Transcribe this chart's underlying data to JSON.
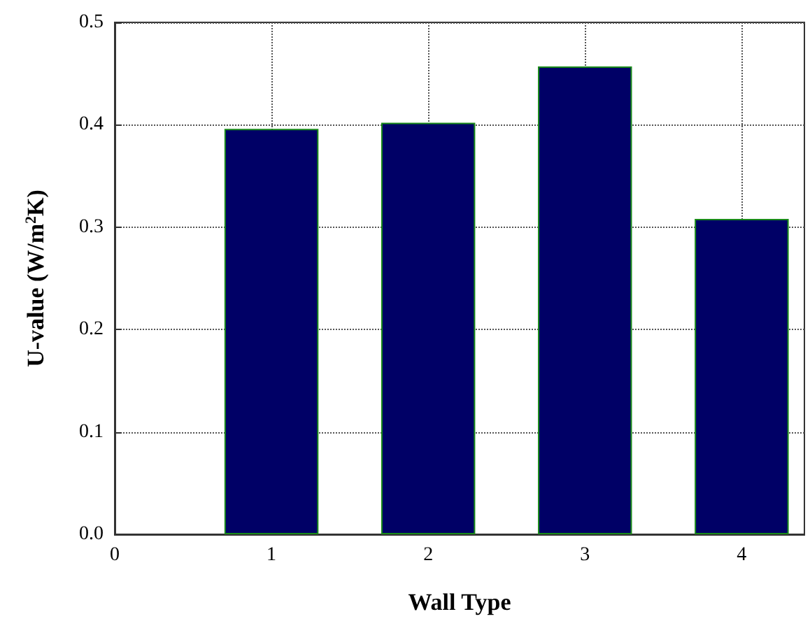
{
  "chart_data": {
    "type": "bar",
    "xlabel": "Wall Type",
    "ylabel": "U-value (W/m$^{2}$K)",
    "x": [
      1,
      2,
      3,
      4
    ],
    "series": [
      {
        "color": "#000066",
        "values": [
          0.396,
          0.402,
          0.457,
          0.308
        ]
      }
    ],
    "xlim": [
      0,
      4.4
    ],
    "xticks": [
      0,
      1,
      2,
      3,
      4
    ],
    "ylim": [
      0,
      0.5
    ],
    "yticks": [
      {
        "value": 0,
        "label": "0.0"
      },
      {
        "value": 0.1,
        "label": "0.1"
      },
      {
        "value": 0.2,
        "label": "0.2"
      },
      {
        "value": 0.3,
        "label": "0.3"
      },
      {
        "value": 0.4,
        "label": "0.4"
      },
      {
        "value": 0.5,
        "label": "0.5"
      }
    ],
    "grid": true
  }
}
